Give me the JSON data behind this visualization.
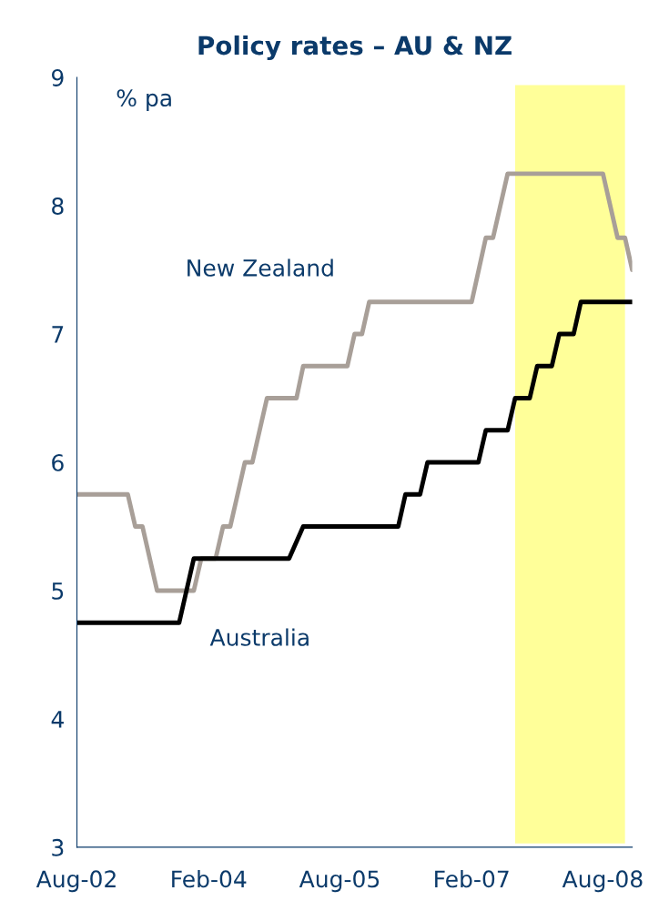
{
  "chart_data": {
    "type": "line",
    "title": "Policy rates – AU & NZ",
    "ylabel": "% pa",
    "xlim": [
      "2002-08",
      "2008-12"
    ],
    "ylim": [
      3,
      9
    ],
    "yticks": [
      3,
      4,
      5,
      6,
      7,
      8,
      9
    ],
    "xticks": [
      {
        "value": "2002-08",
        "label": "Aug-02"
      },
      {
        "value": "2004-02",
        "label": "Feb-04"
      },
      {
        "value": "2005-08",
        "label": "Aug-05"
      },
      {
        "value": "2007-02",
        "label": "Feb-07"
      },
      {
        "value": "2008-08",
        "label": "Aug-08"
      }
    ],
    "grid": false,
    "legend": false,
    "bands": [
      {
        "axis": "x",
        "from": "2007-08",
        "to": "2008-11",
        "color": "#ffff99"
      }
    ],
    "series": [
      {
        "name": "New Zealand",
        "color": "#a89f98",
        "x": [
          "2002-08",
          "2003-03",
          "2003-04",
          "2003-05",
          "2003-07",
          "2003-12",
          "2004-01",
          "2004-03",
          "2004-04",
          "2004-05",
          "2004-07",
          "2004-08",
          "2004-10",
          "2005-02",
          "2005-03",
          "2005-09",
          "2005-10",
          "2005-11",
          "2005-12",
          "2007-02",
          "2007-04",
          "2007-05",
          "2007-07",
          "2008-08",
          "2008-10",
          "2008-11",
          "2008-12"
        ],
        "values": [
          5.75,
          5.75,
          5.5,
          5.5,
          5.0,
          5.0,
          5.25,
          5.25,
          5.5,
          5.5,
          6.0,
          6.0,
          6.5,
          6.5,
          6.75,
          6.75,
          7.0,
          7.0,
          7.25,
          7.25,
          7.75,
          7.75,
          8.25,
          8.25,
          7.75,
          7.75,
          7.5
        ]
      },
      {
        "name": "Australia",
        "color": "#000000",
        "x": [
          "2002-08",
          "2003-10",
          "2003-12",
          "2005-01",
          "2005-03",
          "2006-04",
          "2006-05",
          "2006-07",
          "2006-08",
          "2007-03",
          "2007-04",
          "2007-07",
          "2007-08",
          "2007-10",
          "2007-11",
          "2008-01",
          "2008-02",
          "2008-04",
          "2008-05",
          "2008-12"
        ],
        "values": [
          4.75,
          4.75,
          5.25,
          5.25,
          5.5,
          5.5,
          5.75,
          5.75,
          6.0,
          6.0,
          6.25,
          6.25,
          6.5,
          6.5,
          6.75,
          6.75,
          7.0,
          7.0,
          7.25,
          7.25
        ]
      }
    ]
  }
}
